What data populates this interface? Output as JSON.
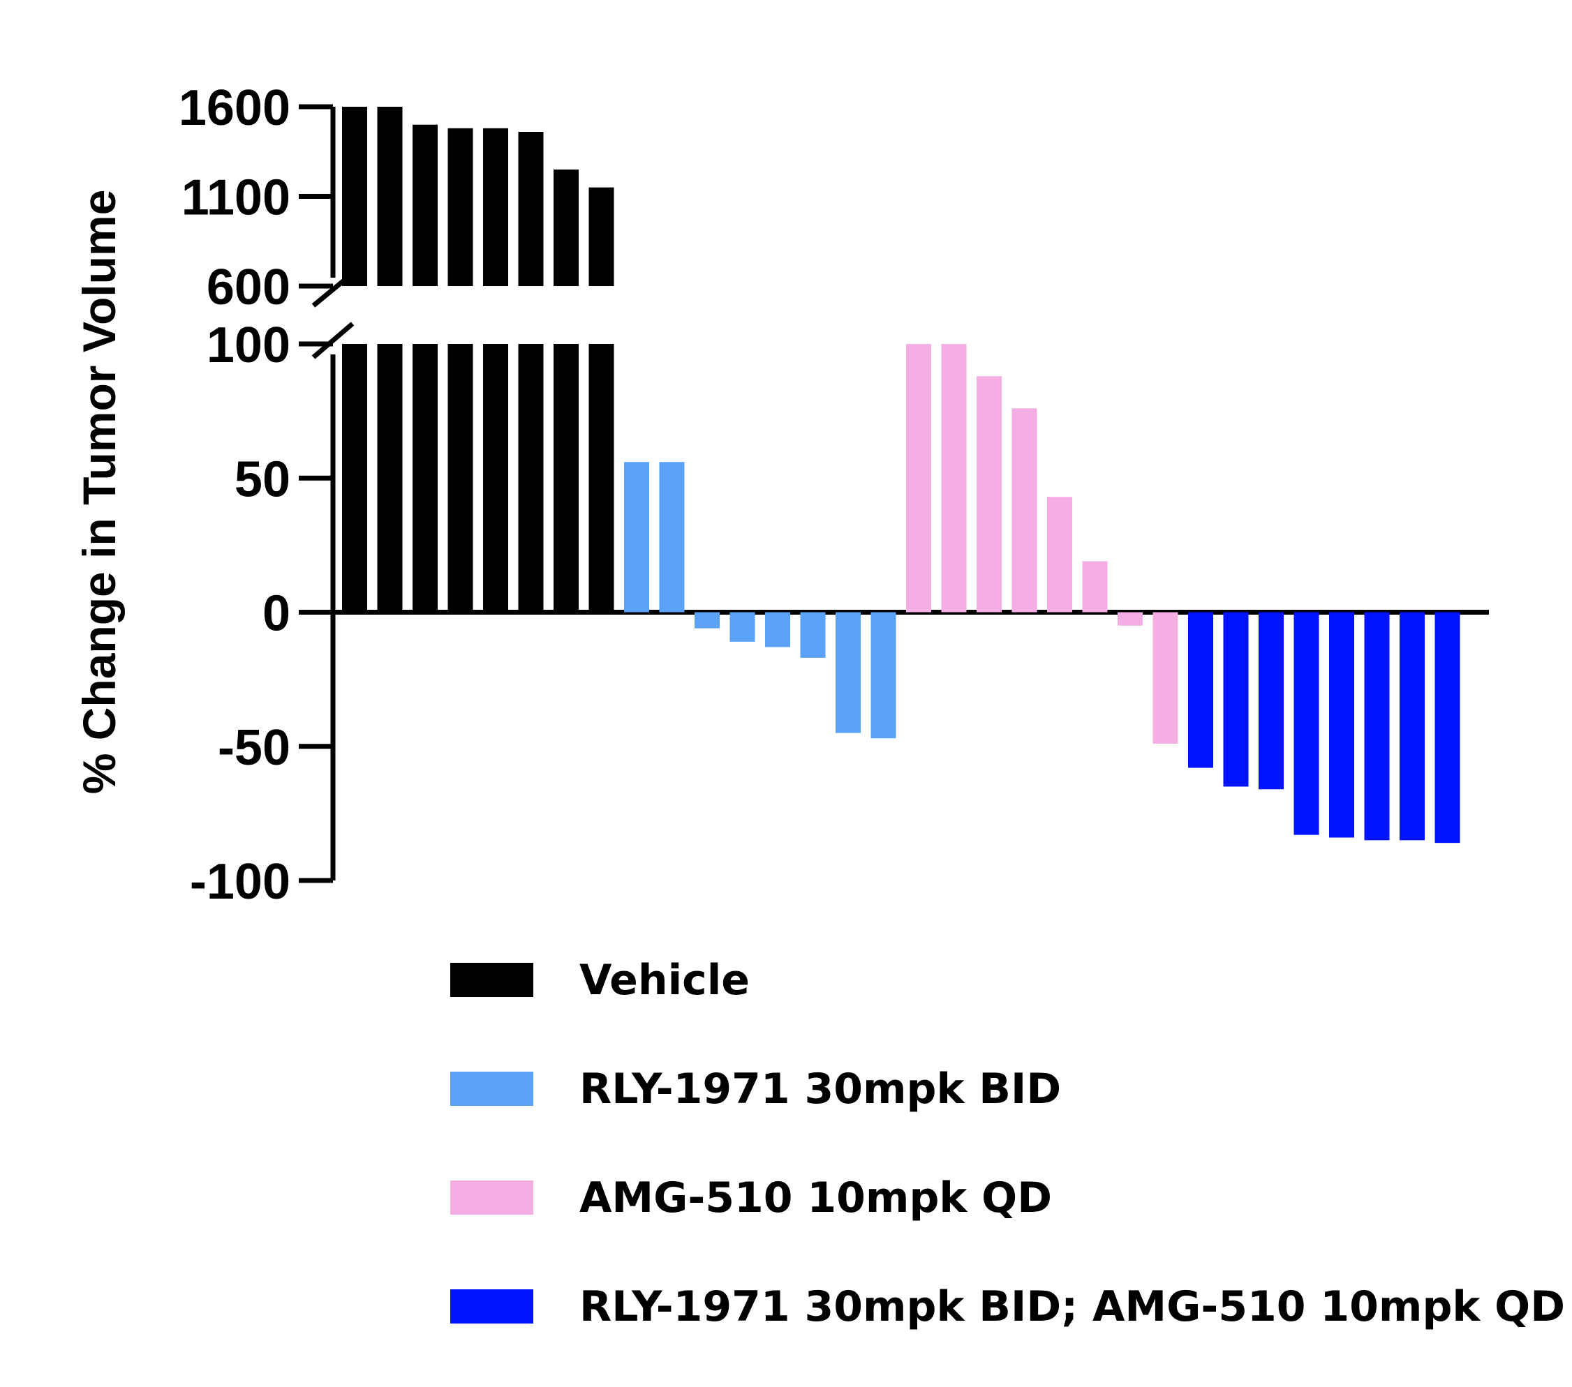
{
  "chart_data": {
    "type": "bar",
    "chart_style": "waterfall",
    "ylabel": "% Change in Tumor Volume",
    "axis_break": true,
    "ylim_lower": [
      -100,
      100
    ],
    "ylim_upper": [
      600,
      1600
    ],
    "yticks_lower": [
      "-100",
      "-50",
      "0",
      "50",
      "100"
    ],
    "yticks_upper": [
      "600",
      "1100",
      "1600"
    ],
    "legend_position": "bottom",
    "series": [
      {
        "name": "Vehicle",
        "color": "#000000",
        "values": [
          1600,
          1600,
          1500,
          1480,
          1480,
          1460,
          1250,
          1150
        ]
      },
      {
        "name": "RLY-1971 30mpk BID",
        "color": "#5aa2f8",
        "values": [
          56,
          56,
          -6,
          -11,
          -13,
          -17,
          -45,
          -47
        ]
      },
      {
        "name": "AMG-510 10mpk QD",
        "color": "#f5aee4",
        "values": [
          100,
          100,
          88,
          76,
          43,
          19,
          -5,
          -49
        ]
      },
      {
        "name": "RLY-1971 30mpk BID; AMG-510 10mpk QD",
        "color": "#0012ff",
        "values": [
          -58,
          -65,
          -66,
          -83,
          -84,
          -85,
          -85,
          -86
        ]
      }
    ]
  }
}
